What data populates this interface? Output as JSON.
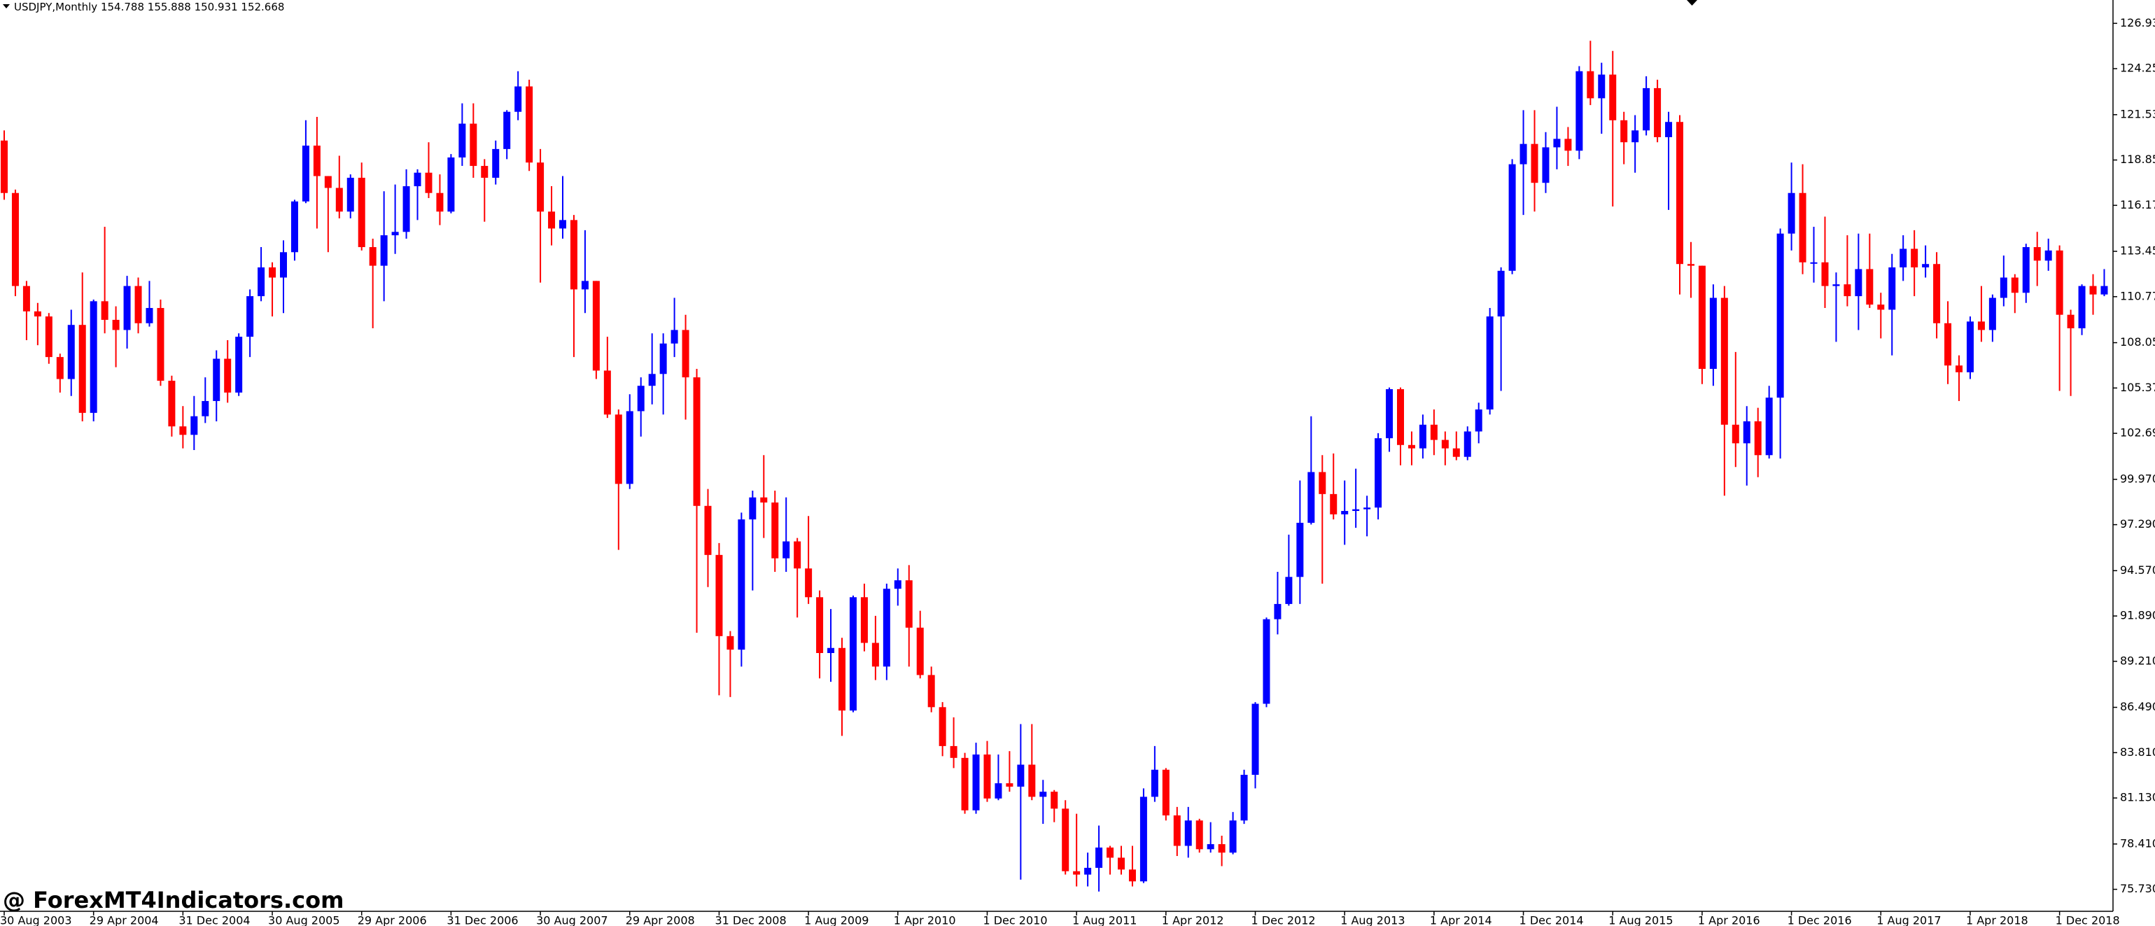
{
  "chart_data": {
    "type": "candlestick",
    "title": "USDJPY,Monthly",
    "header_values": [
      154.788,
      155.888,
      150.931,
      152.668
    ],
    "watermark": "@ ForexMT4Indicators.com",
    "up_color": "#0000ff",
    "down_color": "#ff0000",
    "grid": false,
    "ylim": [
      74.43,
      128.31
    ],
    "yticks": [
      {
        "value": 126.93,
        "label": "126.930"
      },
      {
        "value": 124.25,
        "label": "124.250"
      },
      {
        "value": 121.53,
        "label": "121.530"
      },
      {
        "value": 118.85,
        "label": "118.850"
      },
      {
        "value": 116.17,
        "label": "116.170"
      },
      {
        "value": 113.45,
        "label": "113.450"
      },
      {
        "value": 110.77,
        "label": "110.770"
      },
      {
        "value": 108.05,
        "label": "108.050"
      },
      {
        "value": 105.37,
        "label": "105.370"
      },
      {
        "value": 102.69,
        "label": "102.690"
      },
      {
        "value": 99.97,
        "label": "99.970"
      },
      {
        "value": 97.29,
        "label": "97.290"
      },
      {
        "value": 94.57,
        "label": "94.570"
      },
      {
        "value": 91.89,
        "label": "91.890"
      },
      {
        "value": 89.21,
        "label": "89.210"
      },
      {
        "value": 86.49,
        "label": "86.490"
      },
      {
        "value": 83.81,
        "label": "83.810"
      },
      {
        "value": 81.13,
        "label": "81.130"
      },
      {
        "value": 78.41,
        "label": "78.410"
      },
      {
        "value": 75.73,
        "label": "75.730"
      }
    ],
    "categories": [
      "30 Aug 2003",
      null,
      null,
      null,
      null,
      null,
      null,
      null,
      "29 Apr 2004",
      null,
      null,
      null,
      null,
      null,
      null,
      null,
      "31 Dec 2004",
      null,
      null,
      null,
      null,
      null,
      null,
      null,
      "30 Aug 2005",
      null,
      null,
      null,
      null,
      null,
      null,
      null,
      "29 Apr 2006",
      null,
      null,
      null,
      null,
      null,
      null,
      null,
      "31 Dec 2006",
      null,
      null,
      null,
      null,
      null,
      null,
      null,
      "30 Aug 2007",
      null,
      null,
      null,
      null,
      null,
      null,
      null,
      "29 Apr 2008",
      null,
      null,
      null,
      null,
      null,
      null,
      null,
      "31 Dec 2008",
      null,
      null,
      null,
      null,
      null,
      null,
      null,
      "1 Aug 2009",
      null,
      null,
      null,
      null,
      null,
      null,
      null,
      "1 Apr 2010",
      null,
      null,
      null,
      null,
      null,
      null,
      null,
      "1 Dec 2010",
      null,
      null,
      null,
      null,
      null,
      null,
      null,
      "1 Aug 2011",
      null,
      null,
      null,
      null,
      null,
      null,
      null,
      "1 Apr 2012",
      null,
      null,
      null,
      null,
      null,
      null,
      null,
      "1 Dec 2012",
      null,
      null,
      null,
      null,
      null,
      null,
      null,
      "1 Aug 2013",
      null,
      null,
      null,
      null,
      null,
      null,
      null,
      "1 Apr 2014",
      null,
      null,
      null,
      null,
      null,
      null,
      null,
      "1 Dec 2014",
      null,
      null,
      null,
      null,
      null,
      null,
      null,
      "1 Aug 2015",
      null,
      null,
      null,
      null,
      null,
      null,
      null,
      "1 Apr 2016",
      null,
      null,
      null,
      null,
      null,
      null,
      null,
      "1 Dec 2016",
      null,
      null,
      null,
      null,
      null,
      null,
      null,
      "1 Aug 2017",
      null,
      null,
      null,
      null,
      null,
      null,
      null,
      "1 Apr 2018",
      null,
      null,
      null,
      null,
      null,
      null,
      null,
      "1 Dec 2018",
      null,
      null,
      null,
      null
    ],
    "open": [
      120.0,
      116.9,
      111.4,
      109.9,
      109.6,
      107.2,
      105.9,
      109.1,
      103.9,
      110.5,
      109.4,
      108.8,
      111.4,
      109.2,
      110.1,
      105.8,
      103.1,
      102.6,
      103.7,
      104.6,
      107.1,
      105.1,
      108.4,
      110.8,
      112.5,
      111.9,
      113.4,
      116.4,
      119.7,
      117.9,
      117.2,
      115.8,
      117.8,
      113.7,
      112.6,
      114.4,
      114.6,
      117.3,
      118.1,
      116.9,
      115.8,
      119.0,
      121.0,
      118.5,
      117.8,
      119.5,
      121.7,
      123.2,
      118.7,
      115.8,
      114.8,
      115.3,
      111.2,
      111.7,
      106.4,
      103.8,
      99.7,
      104.0,
      105.5,
      106.2,
      108.0,
      108.8,
      106.0,
      98.4,
      95.5,
      90.7,
      89.9,
      97.6,
      98.9,
      98.6,
      95.3,
      96.3,
      94.7,
      93.0,
      89.7,
      90.0,
      86.3,
      93.0,
      90.3,
      88.9,
      93.5,
      94.0,
      91.2,
      88.4,
      86.5,
      84.2,
      83.5,
      80.4,
      83.7,
      81.1,
      82.0,
      81.8,
      83.1,
      81.2,
      81.5,
      80.5,
      76.8,
      76.6,
      77.0,
      78.2,
      77.6,
      76.9,
      76.2,
      81.2,
      82.8,
      80.1,
      78.3,
      79.8,
      78.1,
      78.4,
      77.9,
      79.8,
      82.5,
      86.7,
      91.7,
      92.6,
      94.2,
      97.4,
      100.4,
      99.1,
      97.9,
      98.1,
      98.2,
      98.3,
      102.4,
      105.3,
      102.0,
      101.8,
      103.2,
      102.3,
      101.8,
      101.3,
      102.8,
      104.1,
      109.6,
      112.3,
      118.6,
      119.8,
      117.5,
      119.6,
      120.1,
      119.4,
      124.1,
      122.5,
      123.9,
      121.2,
      119.9,
      120.6,
      123.1,
      120.2,
      121.1,
      112.7,
      112.6,
      106.5,
      110.7,
      103.2,
      102.1,
      103.4,
      101.4,
      104.8,
      114.5,
      116.9,
      112.8,
      112.8,
      111.4,
      111.5,
      110.8,
      112.4,
      110.3,
      110.0,
      112.5,
      113.6,
      112.5,
      112.7,
      109.2,
      106.7,
      106.3,
      109.3,
      108.8,
      110.7,
      111.9,
      111.0,
      113.7,
      112.9,
      113.5,
      109.7,
      108.9,
      111.4,
      110.9
    ],
    "high": [
      120.6,
      117.1,
      111.7,
      110.4,
      109.8,
      107.4,
      110.0,
      112.2,
      110.6,
      114.9,
      110.2,
      112.0,
      111.9,
      111.7,
      110.6,
      106.1,
      104.3,
      104.9,
      106.0,
      107.6,
      108.2,
      108.6,
      111.2,
      113.7,
      112.8,
      114.1,
      116.5,
      121.2,
      121.4,
      117.9,
      119.1,
      118.0,
      118.7,
      114.2,
      117.0,
      117.4,
      118.3,
      118.3,
      119.9,
      118.0,
      119.2,
      122.2,
      122.2,
      118.9,
      120.0,
      121.8,
      124.1,
      123.6,
      119.5,
      117.3,
      117.9,
      115.6,
      114.7,
      111.7,
      108.4,
      104.1,
      105.0,
      106.0,
      108.6,
      108.6,
      110.7,
      109.7,
      106.5,
      99.4,
      96.2,
      91.0,
      98.0,
      99.3,
      101.4,
      99.3,
      98.9,
      96.5,
      97.8,
      93.4,
      92.3,
      90.6,
      93.1,
      93.8,
      91.9,
      93.8,
      94.7,
      94.9,
      92.2,
      88.9,
      86.8,
      85.9,
      83.8,
      84.4,
      84.5,
      83.7,
      83.9,
      85.5,
      85.5,
      82.2,
      81.6,
      81.0,
      80.2,
      77.9,
      79.5,
      78.3,
      78.3,
      78.3,
      81.7,
      84.2,
      82.9,
      80.6,
      80.6,
      79.9,
      79.7,
      78.9,
      80.3,
      82.8,
      86.8,
      91.8,
      94.5,
      96.7,
      99.9,
      103.7,
      101.4,
      101.5,
      99.9,
      100.6,
      99.0,
      102.7,
      105.4,
      105.4,
      102.8,
      103.8,
      104.1,
      102.8,
      102.8,
      103.1,
      104.5,
      110.1,
      112.5,
      118.9,
      121.8,
      121.8,
      120.5,
      122.0,
      120.8,
      124.4,
      125.9,
      124.6,
      125.3,
      121.7,
      121.5,
      123.8,
      123.6,
      121.7,
      121.5,
      114.0,
      112.6,
      111.5,
      111.4,
      107.5,
      104.3,
      104.2,
      105.5,
      114.8,
      118.7,
      118.6,
      114.9,
      115.5,
      112.2,
      114.4,
      114.5,
      114.5,
      111.0,
      113.3,
      114.4,
      114.7,
      113.8,
      113.4,
      110.5,
      107.3,
      109.6,
      111.4,
      110.9,
      113.2,
      112.1,
      113.9,
      114.6,
      114.2,
      113.8,
      110.0,
      111.5,
      112.1,
      112.4
    ],
    "low": [
      116.5,
      110.8,
      108.2,
      107.9,
      106.8,
      105.1,
      104.9,
      103.4,
      103.4,
      108.6,
      106.6,
      107.7,
      108.6,
      109.0,
      105.5,
      102.5,
      101.8,
      101.7,
      103.3,
      103.4,
      104.5,
      104.9,
      107.2,
      110.5,
      109.6,
      109.8,
      112.9,
      116.3,
      114.8,
      113.4,
      115.4,
      115.4,
      113.5,
      108.9,
      110.5,
      113.3,
      114.2,
      115.3,
      116.6,
      115.0,
      115.7,
      118.5,
      117.8,
      115.2,
      117.4,
      118.9,
      121.2,
      118.2,
      111.6,
      113.8,
      114.2,
      107.2,
      109.8,
      105.9,
      103.6,
      95.8,
      99.4,
      102.5,
      104.4,
      103.8,
      107.2,
      103.5,
      90.9,
      93.6,
      87.2,
      87.1,
      88.9,
      93.4,
      96.5,
      94.5,
      94.5,
      91.8,
      92.6,
      88.2,
      88.0,
      84.8,
      86.2,
      89.8,
      88.1,
      88.1,
      92.5,
      88.9,
      88.2,
      86.2,
      83.6,
      82.9,
      80.2,
      80.2,
      80.9,
      81.0,
      81.5,
      76.3,
      81.0,
      79.6,
      79.7,
      76.6,
      75.9,
      75.9,
      75.6,
      76.6,
      76.6,
      75.9,
      76.1,
      80.9,
      79.8,
      77.7,
      77.6,
      77.9,
      77.9,
      77.1,
      77.8,
      79.6,
      81.7,
      86.5,
      90.8,
      92.5,
      92.6,
      97.3,
      93.8,
      97.6,
      96.1,
      97.1,
      96.6,
      97.6,
      101.6,
      100.8,
      100.8,
      101.2,
      101.4,
      100.8,
      101.1,
      101.1,
      102.1,
      103.8,
      105.2,
      112.1,
      115.6,
      115.8,
      116.9,
      118.3,
      118.5,
      118.9,
      122.1,
      120.4,
      116.1,
      118.6,
      118.1,
      120.3,
      119.9,
      115.9,
      110.9,
      110.7,
      105.6,
      105.5,
      99.0,
      100.7,
      99.6,
      100.1,
      101.2,
      101.2,
      113.5,
      112.1,
      111.6,
      110.1,
      108.1,
      110.2,
      108.8,
      110.1,
      108.3,
      107.3,
      111.7,
      110.8,
      111.9,
      108.3,
      105.6,
      104.6,
      105.9,
      108.1,
      108.1,
      110.2,
      109.8,
      110.4,
      111.4,
      112.3,
      105.2,
      104.9,
      108.5,
      109.7,
      110.8
    ],
    "close": [
      116.9,
      111.4,
      109.9,
      109.6,
      107.2,
      105.9,
      109.1,
      103.9,
      110.5,
      109.4,
      108.8,
      111.4,
      109.2,
      110.1,
      105.8,
      103.1,
      102.6,
      103.7,
      104.6,
      107.1,
      105.1,
      108.4,
      110.8,
      112.5,
      111.9,
      113.4,
      116.4,
      119.7,
      117.9,
      117.2,
      115.8,
      117.8,
      113.7,
      112.6,
      114.4,
      114.6,
      117.3,
      118.1,
      116.9,
      115.8,
      119.0,
      121.0,
      118.5,
      117.8,
      119.5,
      121.7,
      123.2,
      118.7,
      115.8,
      114.8,
      115.3,
      111.2,
      111.7,
      106.4,
      103.8,
      99.7,
      104.0,
      105.5,
      106.2,
      108.0,
      108.8,
      106.0,
      98.4,
      95.5,
      90.7,
      89.9,
      97.6,
      98.9,
      98.6,
      95.3,
      96.3,
      94.7,
      93.0,
      89.7,
      90.0,
      86.3,
      93.0,
      90.3,
      88.9,
      93.5,
      94.0,
      91.2,
      88.4,
      86.5,
      84.2,
      83.5,
      80.4,
      83.7,
      81.1,
      82.0,
      81.8,
      83.1,
      81.2,
      81.5,
      80.5,
      76.8,
      76.6,
      77.0,
      78.2,
      77.6,
      76.9,
      76.2,
      81.2,
      82.8,
      80.1,
      78.3,
      79.8,
      78.1,
      78.4,
      77.9,
      79.8,
      82.5,
      86.7,
      91.7,
      92.6,
      94.2,
      97.4,
      100.4,
      99.1,
      97.9,
      98.1,
      98.2,
      98.3,
      102.4,
      105.3,
      102.0,
      101.8,
      103.2,
      102.3,
      101.8,
      101.3,
      102.8,
      104.1,
      109.6,
      112.3,
      118.6,
      119.8,
      117.5,
      119.6,
      120.1,
      119.4,
      124.1,
      122.5,
      123.9,
      121.2,
      119.9,
      120.6,
      123.1,
      120.2,
      121.1,
      112.7,
      112.6,
      106.5,
      110.7,
      103.2,
      102.1,
      103.4,
      101.4,
      104.8,
      114.5,
      116.9,
      112.8,
      112.8,
      111.4,
      111.5,
      110.8,
      112.4,
      110.3,
      110.0,
      112.5,
      113.6,
      112.5,
      112.7,
      109.2,
      106.7,
      106.3,
      109.3,
      108.8,
      110.7,
      111.9,
      111.0,
      113.7,
      112.9,
      113.5,
      109.7,
      108.9,
      111.4,
      110.9,
      111.4
    ]
  }
}
